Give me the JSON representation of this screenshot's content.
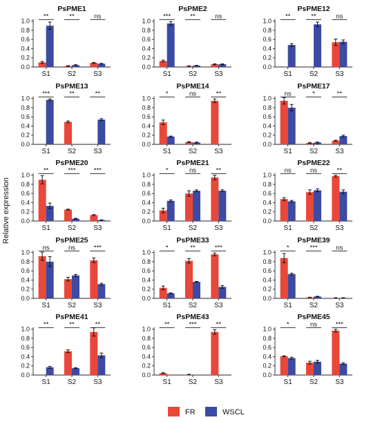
{
  "shared": {
    "ylabel": "Relative expression",
    "legend": [
      {
        "name": "FR",
        "color": "#e8473a"
      },
      {
        "name": "WSCL",
        "color": "#3c4aa2"
      }
    ],
    "ylim": [
      0,
      1.1
    ],
    "yticks": [
      "0.0",
      "0.2",
      "0.4",
      "0.6",
      "0.8",
      "1.0"
    ]
  },
  "chart_data": [
    {
      "type": "bar",
      "title": "PsPME1",
      "categories": [
        "S1",
        "S2",
        "S3"
      ],
      "series": [
        {
          "name": "FR",
          "values": [
            0.1,
            0.02,
            0.09
          ],
          "errors": [
            0.02,
            0.01,
            0.01
          ]
        },
        {
          "name": "WSCL",
          "values": [
            0.9,
            0.04,
            0.07
          ],
          "errors": [
            0.08,
            0.01,
            0.01
          ]
        }
      ],
      "significance": [
        "**",
        "**",
        "ns"
      ],
      "ylim": [
        0,
        1.1
      ]
    },
    {
      "type": "bar",
      "title": "PsPME2",
      "categories": [
        "S1",
        "S2",
        "S3"
      ],
      "series": [
        {
          "name": "FR",
          "values": [
            0.13,
            0.02,
            0.06
          ],
          "errors": [
            0.02,
            0.005,
            0.01
          ]
        },
        {
          "name": "WSCL",
          "values": [
            0.95,
            0.03,
            0.06
          ],
          "errors": [
            0.04,
            0.005,
            0.01
          ]
        }
      ],
      "significance": [
        "***",
        "**",
        "ns"
      ],
      "ylim": [
        0,
        1.1
      ]
    },
    {
      "type": "bar",
      "title": "PsPME12",
      "categories": [
        "S1",
        "S2",
        "S3"
      ],
      "series": [
        {
          "name": "FR",
          "values": [
            0.0,
            0.0,
            0.54
          ],
          "errors": [
            0,
            0,
            0.07
          ]
        },
        {
          "name": "WSCL",
          "values": [
            0.48,
            0.93,
            0.55
          ],
          "errors": [
            0.03,
            0.05,
            0.04
          ]
        }
      ],
      "significance": [
        "**",
        "**",
        "ns"
      ],
      "ylim": [
        0,
        1.1
      ]
    },
    {
      "type": "bar",
      "title": "PsPME13",
      "categories": [
        "S1",
        "S2",
        "S3"
      ],
      "series": [
        {
          "name": "FR",
          "values": [
            0.0,
            0.49,
            0.0
          ],
          "errors": [
            0,
            0.02,
            0
          ]
        },
        {
          "name": "WSCL",
          "values": [
            0.97,
            0.0,
            0.54
          ],
          "errors": [
            0.02,
            0,
            0.02
          ]
        }
      ],
      "significance": [
        "***",
        "**",
        "**"
      ],
      "ylim": [
        0,
        1.1
      ]
    },
    {
      "type": "bar",
      "title": "PsPME14",
      "categories": [
        "S1",
        "S2",
        "S3"
      ],
      "series": [
        {
          "name": "FR",
          "values": [
            0.48,
            0.05,
            0.95
          ],
          "errors": [
            0.05,
            0.01,
            0.04
          ]
        },
        {
          "name": "WSCL",
          "values": [
            0.17,
            0.04,
            0.0
          ],
          "errors": [
            0.01,
            0.01,
            0
          ]
        }
      ],
      "significance": [
        "*",
        "ns",
        "**"
      ],
      "ylim": [
        0,
        1.1
      ]
    },
    {
      "type": "bar",
      "title": "PsPME17",
      "categories": [
        "S1",
        "S2",
        "S3"
      ],
      "series": [
        {
          "name": "FR",
          "values": [
            0.95,
            0.03,
            0.08
          ],
          "errors": [
            0.07,
            0.01,
            0.01
          ]
        },
        {
          "name": "WSCL",
          "values": [
            0.8,
            0.04,
            0.18
          ],
          "errors": [
            0.07,
            0.01,
            0.02
          ]
        }
      ],
      "significance": [
        "ns",
        "*",
        "**"
      ],
      "ylim": [
        0,
        1.1
      ]
    },
    {
      "type": "bar",
      "title": "PsPME20",
      "categories": [
        "S1",
        "S2",
        "S3"
      ],
      "series": [
        {
          "name": "FR",
          "values": [
            0.9,
            0.25,
            0.13
          ],
          "errors": [
            0.09,
            0.01,
            0.01
          ]
        },
        {
          "name": "WSCL",
          "values": [
            0.33,
            0.05,
            0.02
          ],
          "errors": [
            0.06,
            0.01,
            0.005
          ]
        }
      ],
      "significance": [
        "**",
        "***",
        "***"
      ],
      "ylim": [
        0,
        1.1
      ]
    },
    {
      "type": "bar",
      "title": "PsPME21",
      "categories": [
        "S1",
        "S2",
        "S3"
      ],
      "series": [
        {
          "name": "FR",
          "values": [
            0.23,
            0.6,
            0.95
          ],
          "errors": [
            0.05,
            0.06,
            0.05
          ]
        },
        {
          "name": "WSCL",
          "values": [
            0.44,
            0.66,
            0.66
          ],
          "errors": [
            0.02,
            0.02,
            0.02
          ]
        }
      ],
      "significance": [
        "*",
        "ns",
        "**"
      ],
      "ylim": [
        0,
        1.1
      ]
    },
    {
      "type": "bar",
      "title": "PsPME22",
      "categories": [
        "S1",
        "S2",
        "S3"
      ],
      "series": [
        {
          "name": "FR",
          "values": [
            0.48,
            0.63,
            0.98
          ],
          "errors": [
            0.03,
            0.05,
            0.02
          ]
        },
        {
          "name": "WSCL",
          "values": [
            0.43,
            0.67,
            0.64
          ],
          "errors": [
            0.02,
            0.03,
            0.04
          ]
        }
      ],
      "significance": [
        "ns",
        "ns",
        "**"
      ],
      "ylim": [
        0,
        1.1
      ]
    },
    {
      "type": "bar",
      "title": "PsPME25",
      "categories": [
        "S1",
        "S2",
        "S3"
      ],
      "series": [
        {
          "name": "FR",
          "values": [
            0.92,
            0.42,
            0.83
          ],
          "errors": [
            0.09,
            0.04,
            0.05
          ]
        },
        {
          "name": "WSCL",
          "values": [
            0.8,
            0.5,
            0.31
          ],
          "errors": [
            0.11,
            0.02,
            0.02
          ]
        }
      ],
      "significance": [
        "ns",
        "ns",
        "***"
      ],
      "ylim": [
        0,
        1.1
      ]
    },
    {
      "type": "bar",
      "title": "PsPME33",
      "categories": [
        "S1",
        "S2",
        "S3"
      ],
      "series": [
        {
          "name": "FR",
          "values": [
            0.23,
            0.82,
            0.96
          ],
          "errors": [
            0.04,
            0.05,
            0.03
          ]
        },
        {
          "name": "WSCL",
          "values": [
            0.11,
            0.36,
            0.25
          ],
          "errors": [
            0.01,
            0.01,
            0.03
          ]
        }
      ],
      "significance": [
        "*",
        "**",
        "***"
      ],
      "ylim": [
        0,
        1.1
      ]
    },
    {
      "type": "bar",
      "title": "PsPME39",
      "categories": [
        "S1",
        "S2",
        "S3"
      ],
      "series": [
        {
          "name": "FR",
          "values": [
            0.88,
            0.02,
            0.01
          ],
          "errors": [
            0.1,
            0.005,
            0.005
          ]
        },
        {
          "name": "WSCL",
          "values": [
            0.53,
            0.04,
            0.01
          ],
          "errors": [
            0.02,
            0.005,
            0.005
          ]
        }
      ],
      "significance": [
        "*",
        "***",
        "ns"
      ],
      "ylim": [
        0,
        1.1
      ]
    },
    {
      "type": "bar",
      "title": "PsPME41",
      "categories": [
        "S1",
        "S2",
        "S3"
      ],
      "series": [
        {
          "name": "FR",
          "values": [
            0.0,
            0.52,
            0.94
          ],
          "errors": [
            0,
            0.03,
            0.09
          ]
        },
        {
          "name": "WSCL",
          "values": [
            0.17,
            0.15,
            0.43
          ],
          "errors": [
            0.02,
            0.01,
            0.05
          ]
        }
      ],
      "significance": [
        "**",
        "**",
        "**"
      ],
      "ylim": [
        0,
        1.1
      ]
    },
    {
      "type": "bar",
      "title": "PsPME43",
      "categories": [
        "S1",
        "S2",
        "S3"
      ],
      "series": [
        {
          "name": "FR",
          "values": [
            0.04,
            0.01,
            0.94
          ],
          "errors": [
            0.01,
            0.005,
            0.05
          ]
        },
        {
          "name": "WSCL",
          "values": [
            0.0,
            0.0,
            0.0
          ],
          "errors": [
            0,
            0,
            0
          ]
        }
      ],
      "significance": [
        "**",
        "***",
        "**"
      ],
      "ylim": [
        0,
        1.1
      ]
    },
    {
      "type": "bar",
      "title": "PsPME45",
      "categories": [
        "S1",
        "S2",
        "S3"
      ],
      "series": [
        {
          "name": "FR",
          "values": [
            0.41,
            0.27,
            0.97
          ],
          "errors": [
            0.01,
            0.03,
            0.03
          ]
        },
        {
          "name": "WSCL",
          "values": [
            0.37,
            0.29,
            0.25
          ],
          "errors": [
            0.02,
            0.03,
            0.02
          ]
        }
      ],
      "significance": [
        "*",
        "ns",
        "***"
      ],
      "ylim": [
        0,
        1.1
      ]
    }
  ]
}
